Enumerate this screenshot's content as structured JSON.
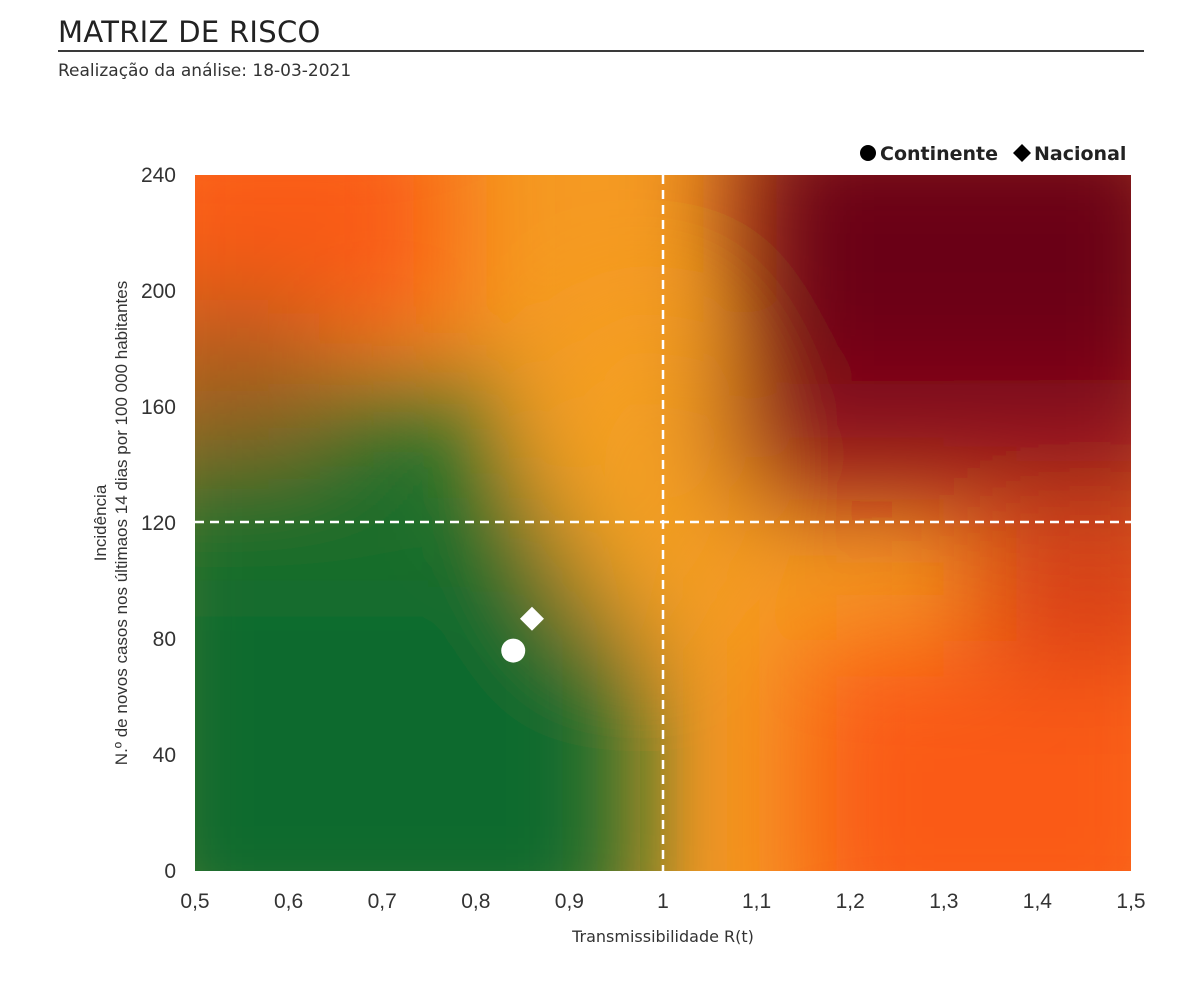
{
  "header": {
    "title": "MATRIZ DE RISCO",
    "subtitle": "Realização da análise: 18-03-2021"
  },
  "chart_data": {
    "type": "scatter",
    "xlabel": "Transmissibilidade R(t)",
    "ylabel_line1": "Incidência",
    "ylabel_line2": "N.º de novos casos nos últimaos 14 dias por 100 000 habitantes",
    "xlim": [
      0.5,
      1.5
    ],
    "ylim": [
      0,
      240
    ],
    "x_ticks": [
      "0,5",
      "0,6",
      "0,7",
      "0,8",
      "0,9",
      "1",
      "1,1",
      "1,2",
      "1,3",
      "1,4",
      "1,5"
    ],
    "x_tick_values": [
      0.5,
      0.6,
      0.7,
      0.8,
      0.9,
      1.0,
      1.1,
      1.2,
      1.3,
      1.4,
      1.5
    ],
    "y_ticks": [
      "0",
      "40",
      "80",
      "120",
      "160",
      "200",
      "240"
    ],
    "y_tick_values": [
      0,
      40,
      80,
      120,
      160,
      200,
      240
    ],
    "thresholds": {
      "x": 1.0,
      "y": 120
    },
    "legend": {
      "position": "top-right"
    },
    "series": [
      {
        "name": "Continente",
        "marker": "circle",
        "x": [
          0.84
        ],
        "y": [
          76
        ]
      },
      {
        "name": "Nacional",
        "marker": "diamond",
        "x": [
          0.86
        ],
        "y": [
          87
        ]
      }
    ],
    "colors": {
      "green": "#0a6b2e",
      "orange": "#f5a020",
      "red_orange": "#fa5a18",
      "dark_red": "#6a0018",
      "marker": "#ffffff",
      "legend_marker": "#000000"
    }
  }
}
